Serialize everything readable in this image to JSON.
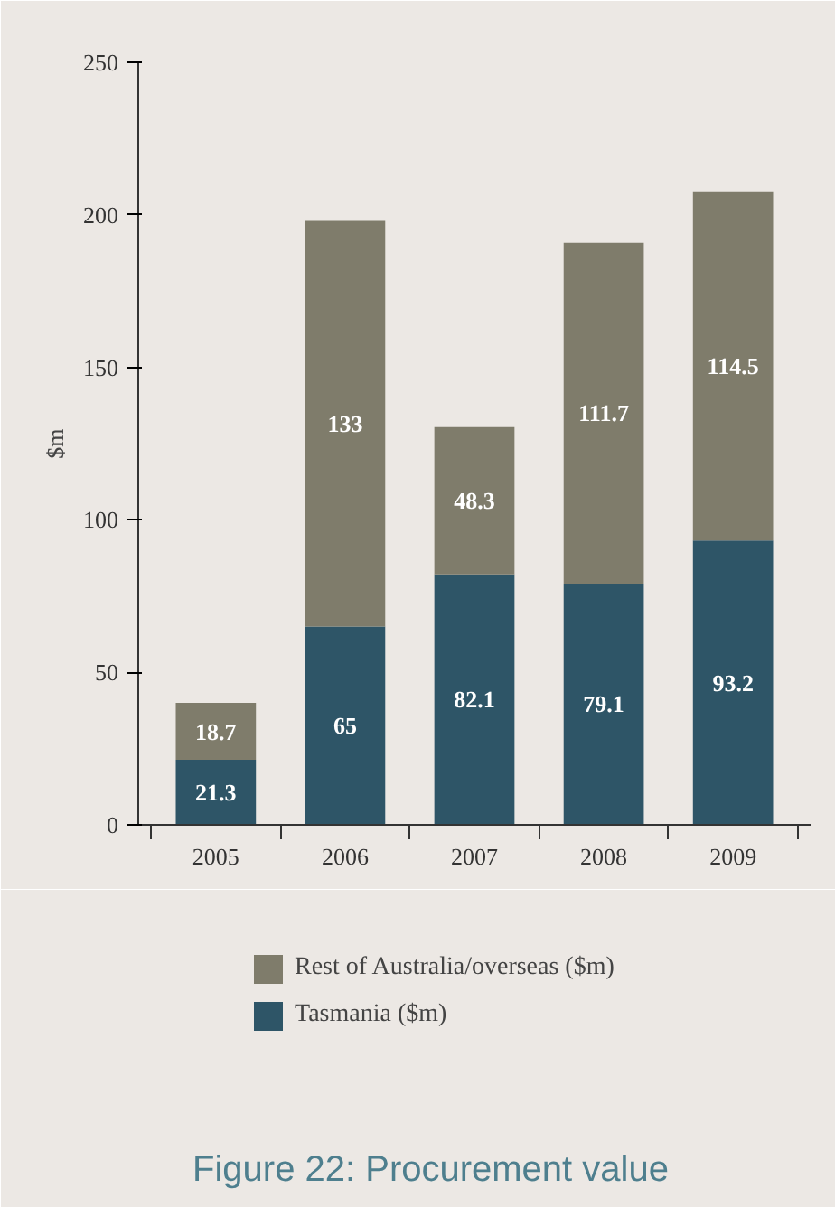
{
  "chart_data": {
    "type": "bar",
    "title": "Figure 22: Procurement value",
    "ylabel": "$m",
    "categories": [
      "2005",
      "2006",
      "2007",
      "2008",
      "2009"
    ],
    "stacked": true,
    "data_labels": true,
    "legend": "bottom",
    "series": [
      {
        "name": "Tasmania ($m)",
        "color": "#2e5567",
        "values": [
          21.3,
          65,
          82.1,
          79.1,
          93.2
        ]
      },
      {
        "name": "Rest of Australia/overseas ($m)",
        "color": "#7f7c6b",
        "values": [
          18.7,
          133,
          48.3,
          111.7,
          114.5
        ]
      }
    ],
    "ylim": [
      0,
      250
    ],
    "yticks": [
      0,
      50,
      100,
      150,
      200,
      250
    ]
  }
}
